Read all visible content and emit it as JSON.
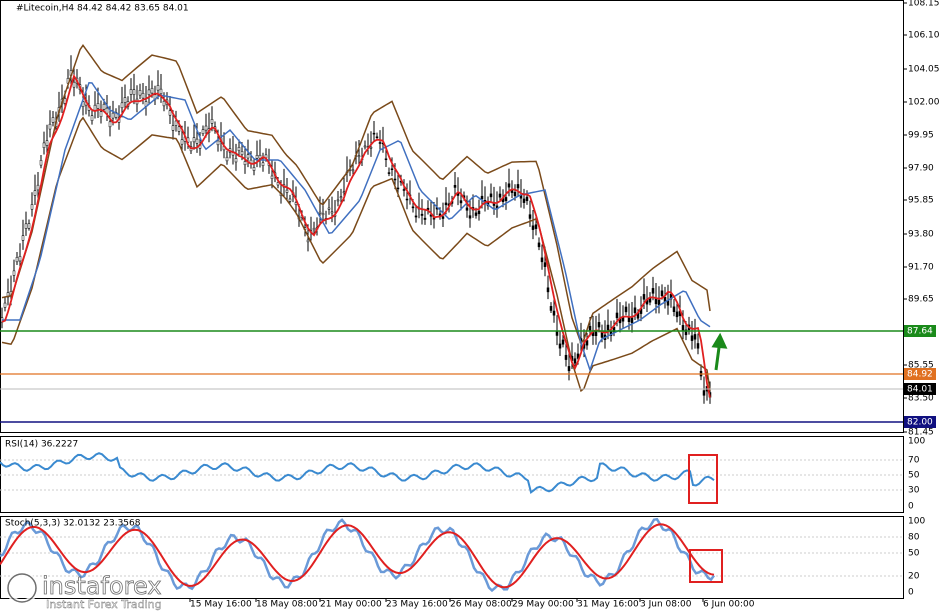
{
  "header": {
    "title": "#Litecoin,H4  84.42 84.42 83.65 84.01"
  },
  "price_axis": [
    "108.15",
    "106.10",
    "104.05",
    "102.00",
    "99.95",
    "97.90",
    "95.85",
    "93.80",
    "91.70",
    "89.65",
    "85.55",
    "83.50",
    "81.45"
  ],
  "levels": {
    "green": "87.64",
    "orange": "84.92",
    "current": "84.01",
    "blue": "82.00"
  },
  "rsi": {
    "title": "RSI(14) 36.2227",
    "axis": [
      "100",
      "70",
      "50",
      "30",
      "0"
    ]
  },
  "stoch": {
    "title": "Stoch(5,3,3) 32.0132 23.3568",
    "axis": [
      "100",
      "80",
      "50",
      "20",
      "0"
    ]
  },
  "time_axis": [
    "15 May 16:00",
    "18 May 08:00",
    "21 May 00:00",
    "23 May 16:00",
    "26 May 08:00",
    "29 May 00:00",
    "31 May 16:00",
    "3 Jun 08:00",
    "6 Jun 00:00"
  ],
  "watermark": {
    "brand": "instaforex",
    "tagline": "Instant Forex Trading"
  }
}
